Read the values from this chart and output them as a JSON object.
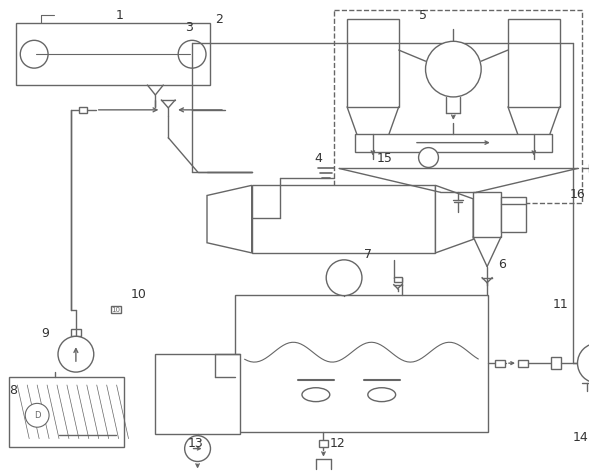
{
  "bg_color": "#ffffff",
  "line_color": "#666666",
  "label_color": "#333333",
  "figsize": [
    5.92,
    4.73
  ],
  "dpi": 100
}
